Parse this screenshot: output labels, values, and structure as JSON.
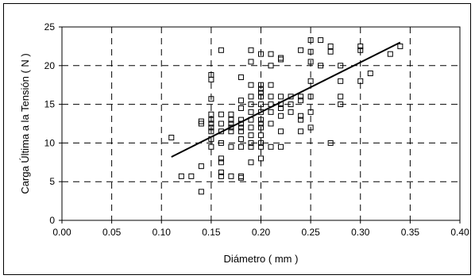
{
  "chart_data": {
    "type": "scatter",
    "title": "",
    "xlabel": "Diámetro ( mm )",
    "ylabel": "Carga Última a la Tensión ( N )",
    "xlim": [
      0.0,
      0.4
    ],
    "ylim": [
      0,
      25
    ],
    "xticks": [
      "0.00",
      "0.05",
      "0.10",
      "0.15",
      "0.20",
      "0.25",
      "0.30",
      "0.35",
      "0.40"
    ],
    "yticks": [
      "0",
      "5",
      "10",
      "15",
      "20",
      "25"
    ],
    "grid": true,
    "marker": "open-square",
    "series": [
      {
        "points": [
          [
            0.11,
            10.7
          ],
          [
            0.12,
            5.7
          ],
          [
            0.13,
            5.7
          ],
          [
            0.14,
            3.7
          ],
          [
            0.14,
            7.0
          ],
          [
            0.14,
            12.5
          ],
          [
            0.14,
            12.8
          ],
          [
            0.15,
            9.5
          ],
          [
            0.15,
            10.5
          ],
          [
            0.15,
            11.5
          ],
          [
            0.15,
            12.0
          ],
          [
            0.15,
            12.5
          ],
          [
            0.15,
            13.0
          ],
          [
            0.15,
            13.7
          ],
          [
            0.15,
            15.7
          ],
          [
            0.15,
            18.2
          ],
          [
            0.15,
            18.8
          ],
          [
            0.16,
            5.7
          ],
          [
            0.16,
            6.2
          ],
          [
            0.16,
            7.5
          ],
          [
            0.16,
            8.0
          ],
          [
            0.16,
            10.0
          ],
          [
            0.16,
            11.5
          ],
          [
            0.16,
            12.5
          ],
          [
            0.16,
            13.7
          ],
          [
            0.16,
            22.0
          ],
          [
            0.17,
            5.7
          ],
          [
            0.17,
            9.5
          ],
          [
            0.17,
            11.5
          ],
          [
            0.17,
            12.0
          ],
          [
            0.17,
            12.5
          ],
          [
            0.17,
            13.0
          ],
          [
            0.17,
            13.7
          ],
          [
            0.18,
            5.5
          ],
          [
            0.18,
            5.7
          ],
          [
            0.18,
            9.5
          ],
          [
            0.18,
            10.5
          ],
          [
            0.18,
            11.5
          ],
          [
            0.18,
            12.0
          ],
          [
            0.18,
            12.5
          ],
          [
            0.18,
            13.0
          ],
          [
            0.18,
            14.5
          ],
          [
            0.18,
            15.5
          ],
          [
            0.18,
            18.5
          ],
          [
            0.19,
            7.5
          ],
          [
            0.19,
            9.5
          ],
          [
            0.19,
            10.0
          ],
          [
            0.19,
            11.0
          ],
          [
            0.19,
            12.0
          ],
          [
            0.19,
            13.0
          ],
          [
            0.19,
            14.0
          ],
          [
            0.19,
            15.0
          ],
          [
            0.19,
            16.0
          ],
          [
            0.19,
            17.5
          ],
          [
            0.19,
            20.5
          ],
          [
            0.19,
            22.0
          ],
          [
            0.2,
            8.0
          ],
          [
            0.2,
            9.5
          ],
          [
            0.2,
            10.0
          ],
          [
            0.2,
            11.0
          ],
          [
            0.2,
            12.0
          ],
          [
            0.2,
            12.5
          ],
          [
            0.2,
            13.0
          ],
          [
            0.2,
            14.0
          ],
          [
            0.2,
            15.0
          ],
          [
            0.2,
            16.0
          ],
          [
            0.2,
            16.5
          ],
          [
            0.2,
            17.0
          ],
          [
            0.2,
            17.5
          ],
          [
            0.2,
            21.5
          ],
          [
            0.21,
            9.5
          ],
          [
            0.21,
            12.5
          ],
          [
            0.21,
            14.0
          ],
          [
            0.21,
            15.0
          ],
          [
            0.21,
            16.0
          ],
          [
            0.21,
            17.5
          ],
          [
            0.21,
            20.0
          ],
          [
            0.21,
            21.5
          ],
          [
            0.22,
            9.5
          ],
          [
            0.22,
            11.5
          ],
          [
            0.22,
            13.5
          ],
          [
            0.22,
            14.5
          ],
          [
            0.22,
            15.0
          ],
          [
            0.22,
            16.0
          ],
          [
            0.22,
            21.0
          ],
          [
            0.22,
            20.8
          ],
          [
            0.23,
            14.0
          ],
          [
            0.23,
            15.0
          ],
          [
            0.23,
            16.0
          ],
          [
            0.24,
            11.5
          ],
          [
            0.24,
            13.0
          ],
          [
            0.24,
            13.5
          ],
          [
            0.24,
            15.5
          ],
          [
            0.24,
            16.0
          ],
          [
            0.24,
            22.0
          ],
          [
            0.25,
            12.0
          ],
          [
            0.25,
            14.0
          ],
          [
            0.25,
            16.0
          ],
          [
            0.25,
            18.0
          ],
          [
            0.25,
            20.5
          ],
          [
            0.25,
            21.8
          ],
          [
            0.25,
            23.3
          ],
          [
            0.26,
            20.0
          ],
          [
            0.26,
            23.3
          ],
          [
            0.27,
            10.0
          ],
          [
            0.27,
            21.8
          ],
          [
            0.27,
            22.5
          ],
          [
            0.28,
            15.0
          ],
          [
            0.28,
            16.0
          ],
          [
            0.28,
            18.0
          ],
          [
            0.28,
            20.0
          ],
          [
            0.3,
            18.0
          ],
          [
            0.3,
            22.0
          ],
          [
            0.3,
            22.5
          ],
          [
            0.31,
            19.0
          ],
          [
            0.33,
            21.5
          ],
          [
            0.34,
            22.5
          ]
        ]
      }
    ],
    "trendline": {
      "x": [
        0.11,
        0.34
      ],
      "y": [
        8.2,
        23.0
      ]
    }
  }
}
